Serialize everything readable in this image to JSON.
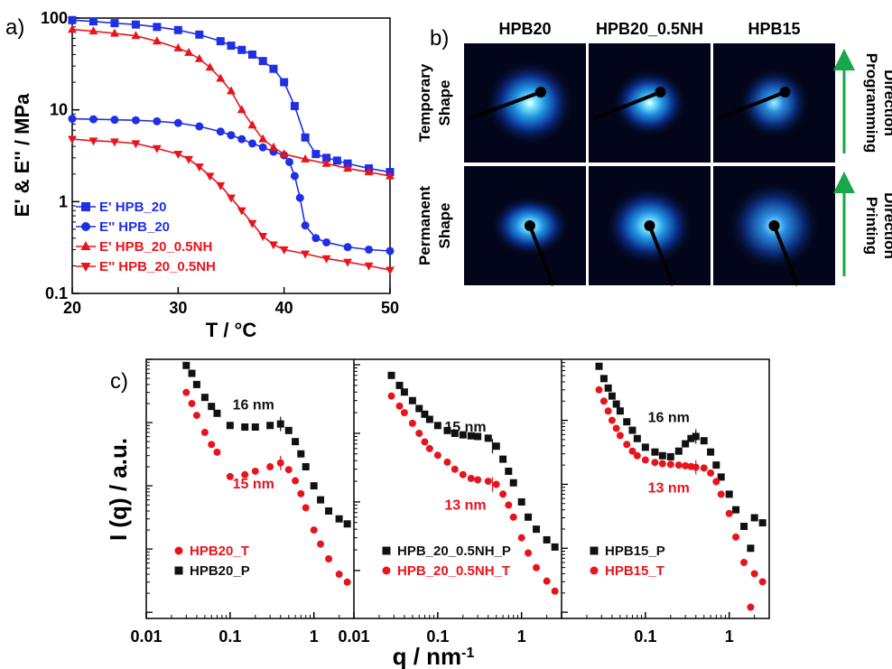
{
  "panels": {
    "a": "a)",
    "b": "b)",
    "c": "c)"
  },
  "chart_data": [
    {
      "type": "line",
      "panel": "a",
      "xlabel": "T / °C",
      "ylabel": "E' & E'' / MPa",
      "xlim": [
        20,
        50
      ],
      "ylim": [
        0.1,
        100
      ],
      "yscale": "log",
      "xticks": [
        "20",
        "30",
        "40",
        "50"
      ],
      "yticks": [
        {
          "value": 0.1,
          "label": "0.1"
        },
        {
          "value": 1,
          "label": "1"
        },
        {
          "value": 10,
          "label": "10"
        },
        {
          "value": 100,
          "label": "100"
        }
      ],
      "legend_position": "bottom-left",
      "series": [
        {
          "name": "E' HPB_20",
          "color": "#1f2fe6",
          "marker": "square",
          "x": [
            20,
            22,
            24,
            26,
            28,
            30,
            32,
            34,
            35,
            36,
            37,
            38,
            39,
            40,
            41,
            42,
            43,
            44,
            45,
            46,
            48,
            50
          ],
          "y": [
            95,
            92,
            88,
            85,
            80,
            74,
            66,
            56,
            50,
            45,
            40,
            34,
            28,
            20,
            11,
            5,
            3.3,
            3.0,
            2.8,
            2.6,
            2.3,
            2.1
          ]
        },
        {
          "name": "E'' HPB_20",
          "color": "#1f2fe6",
          "marker": "circle",
          "x": [
            20,
            22,
            24,
            26,
            28,
            30,
            32,
            34,
            35,
            36,
            37,
            38,
            39,
            40,
            40.5,
            41,
            41.5,
            42,
            43,
            44,
            46,
            48,
            50
          ],
          "y": [
            8.0,
            7.9,
            7.8,
            7.7,
            7.5,
            7.2,
            6.6,
            5.8,
            5.3,
            4.8,
            4.3,
            3.9,
            3.5,
            3.2,
            2.7,
            1.9,
            1.1,
            0.55,
            0.4,
            0.36,
            0.32,
            0.3,
            0.29
          ]
        },
        {
          "name": "E' HPB_20_0.5NH",
          "color": "#e8141b",
          "marker": "triangle-up",
          "x": [
            20,
            22,
            24,
            26,
            28,
            30,
            31,
            32,
            33,
            34,
            35,
            36,
            37,
            38,
            39,
            40,
            42,
            44,
            46,
            48,
            50
          ],
          "y": [
            75,
            72,
            68,
            64,
            56,
            47,
            42,
            36,
            29,
            22,
            16,
            10,
            6.8,
            4.8,
            3.9,
            3.3,
            2.9,
            2.6,
            2.3,
            2.1,
            1.9
          ]
        },
        {
          "name": "E'' HPB_20_0.5NH",
          "color": "#e8141b",
          "marker": "triangle-down",
          "x": [
            20,
            22,
            24,
            26,
            28,
            30,
            31,
            32,
            33,
            34,
            35,
            36,
            37,
            38,
            39,
            40,
            42,
            44,
            46,
            48,
            50
          ],
          "y": [
            4.8,
            4.6,
            4.5,
            4.3,
            3.8,
            3.3,
            2.9,
            2.4,
            1.9,
            1.5,
            1.1,
            0.8,
            0.58,
            0.42,
            0.34,
            0.3,
            0.27,
            0.24,
            0.22,
            0.2,
            0.18
          ]
        }
      ]
    },
    {
      "type": "scatter",
      "panel": "c",
      "subplot": 1,
      "xscale": "log",
      "xlim": [
        0.01,
        3
      ],
      "yscale": "log",
      "ylabel": "I (q) / a.u.",
      "xlabel": "q / nm-1",
      "xticks": [
        "0.01",
        "0.1",
        "1"
      ],
      "annotations": [
        {
          "text": "16 nm",
          "series": "HPB20_P",
          "x": 0.4
        },
        {
          "text": "15 nm",
          "series": "HPB20_T",
          "x": 0.4
        }
      ],
      "legend_position": "bottom-left",
      "series": [
        {
          "name": "HPB20_T",
          "color": "#e8141b",
          "marker": "circle",
          "x": [
            0.03,
            0.035,
            0.04,
            0.05,
            0.06,
            0.07,
            0.1,
            0.15,
            0.2,
            0.3,
            0.4,
            0.5,
            0.6,
            0.7,
            0.8,
            1.0,
            1.2,
            1.5,
            2.0,
            2.5
          ],
          "y": [
            3000,
            2000,
            1300,
            700,
            450,
            340,
            140,
            150,
            170,
            200,
            230,
            180,
            120,
            75,
            45,
            20,
            12,
            7,
            4,
            3
          ]
        },
        {
          "name": "HPB20_P",
          "color": "#111111",
          "marker": "square",
          "x": [
            0.03,
            0.035,
            0.04,
            0.05,
            0.06,
            0.07,
            0.1,
            0.15,
            0.2,
            0.3,
            0.4,
            0.5,
            0.6,
            0.7,
            0.8,
            1.0,
            1.2,
            1.5,
            2.0,
            2.5
          ],
          "y": [
            8000,
            6000,
            4000,
            2500,
            1800,
            1400,
            900,
            850,
            850,
            900,
            950,
            750,
            500,
            320,
            200,
            100,
            60,
            40,
            30,
            25
          ]
        }
      ]
    },
    {
      "type": "scatter",
      "panel": "c",
      "subplot": 2,
      "xscale": "log",
      "xlim": [
        0.01,
        3
      ],
      "yscale": "log",
      "xticks": [
        "0.01",
        "0.1",
        "1"
      ],
      "annotations": [
        {
          "text": "15 nm",
          "series": "HPB_20_0.5NH_P",
          "x": 0.45
        },
        {
          "text": "13 nm",
          "series": "HPB_20_0.5NH_T",
          "x": 0.45
        }
      ],
      "legend_position": "bottom-left",
      "series": [
        {
          "name": "HPB_20_0.5NH_P",
          "color": "#111111",
          "marker": "square",
          "x": [
            0.028,
            0.035,
            0.04,
            0.05,
            0.06,
            0.07,
            0.08,
            0.1,
            0.13,
            0.16,
            0.2,
            0.25,
            0.3,
            0.4,
            0.5,
            0.6,
            0.7,
            0.8,
            1.0,
            1.2,
            1.5,
            2.0,
            2.5
          ],
          "y": [
            7000,
            5000,
            4000,
            3000,
            2300,
            1900,
            1600,
            1300,
            1100,
            1000,
            950,
            920,
            900,
            850,
            650,
            420,
            280,
            190,
            100,
            60,
            40,
            28,
            22
          ]
        },
        {
          "name": "HPB_20_0.5NH_T",
          "color": "#e8141b",
          "marker": "circle",
          "x": [
            0.028,
            0.035,
            0.04,
            0.05,
            0.06,
            0.07,
            0.08,
            0.1,
            0.13,
            0.16,
            0.2,
            0.25,
            0.3,
            0.4,
            0.5,
            0.6,
            0.7,
            0.8,
            1.0,
            1.2,
            1.5,
            2.0,
            2.5
          ],
          "y": [
            3500,
            2500,
            2000,
            1400,
            1000,
            750,
            600,
            480,
            380,
            300,
            250,
            220,
            210,
            200,
            180,
            130,
            90,
            60,
            30,
            18,
            11,
            7,
            5
          ]
        }
      ]
    },
    {
      "type": "scatter",
      "panel": "c",
      "subplot": 3,
      "xscale": "log",
      "xlim": [
        0.01,
        3
      ],
      "yscale": "log",
      "xticks": [
        "0.1",
        "1"
      ],
      "annotations": [
        {
          "text": "16 nm",
          "series": "HPB15_P",
          "x": 0.4
        },
        {
          "text": "13 nm",
          "series": "HPB15_T",
          "x": 0.4
        }
      ],
      "legend_position": "bottom-left",
      "series": [
        {
          "name": "HPB15_P",
          "color": "#111111",
          "marker": "square",
          "x": [
            0.028,
            0.032,
            0.036,
            0.04,
            0.045,
            0.05,
            0.06,
            0.07,
            0.08,
            0.1,
            0.13,
            0.16,
            0.2,
            0.25,
            0.3,
            0.35,
            0.4,
            0.5,
            0.6,
            0.7,
            0.8,
            1.0,
            1.2,
            1.5,
            1.8,
            2.0,
            2.5
          ],
          "y": [
            7000,
            4500,
            3200,
            2400,
            1800,
            1400,
            950,
            700,
            520,
            380,
            320,
            280,
            270,
            330,
            430,
            520,
            560,
            480,
            320,
            200,
            130,
            70,
            40,
            22,
            10,
            30,
            25
          ]
        },
        {
          "name": "HPB15_T",
          "color": "#e8141b",
          "marker": "circle",
          "x": [
            0.028,
            0.032,
            0.036,
            0.04,
            0.045,
            0.05,
            0.06,
            0.07,
            0.08,
            0.1,
            0.13,
            0.16,
            0.2,
            0.25,
            0.3,
            0.35,
            0.4,
            0.5,
            0.6,
            0.7,
            0.8,
            1.0,
            1.2,
            1.5,
            1.8,
            2.0,
            2.5
          ],
          "y": [
            3000,
            2000,
            1400,
            1000,
            750,
            580,
            420,
            330,
            280,
            240,
            220,
            210,
            205,
            200,
            195,
            190,
            185,
            180,
            150,
            110,
            70,
            35,
            15,
            6,
            1.2,
            4,
            3
          ]
        }
      ]
    }
  ],
  "saxs_images": {
    "columns": [
      "HPB20",
      "HPB20_0.5NH",
      "HPB15"
    ],
    "rows": [
      {
        "label_line1": "Temporary",
        "label_line2": "Shape",
        "arrow_line1": "Programming",
        "arrow_line2": "Direction"
      },
      {
        "label_line1": "Permanent",
        "label_line2": "Shape",
        "arrow_line1": "Printing",
        "arrow_line2": "Direction"
      }
    ],
    "arrow_color": "#1aa64a"
  }
}
